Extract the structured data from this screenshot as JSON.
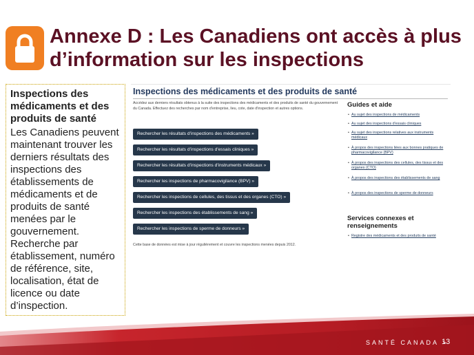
{
  "slide": {
    "title": "Annexe D : Les Canadiens ont accès à plus d’information sur les inspections",
    "accent_color": "#f07f22",
    "title_color": "#5b1124",
    "icon": "lock-icon"
  },
  "left_panel": {
    "heading": "Inspections des médicaments et des produits de santé",
    "body": "Les Canadiens peuvent maintenant trouver les derniers résultats des inspections des établissements de médicaments et de produits de santé menées par le gouvernement. Recherche par établissement, numéro de référence, site, localisation, état de licence ou date d’inspection."
  },
  "web_screenshot": {
    "title": "Inspections des médicaments et des produits de santé",
    "intro": "Accédez aux derniers résultats obtenus à la suite des inspections des médicaments et des produits de santé du gouvernement du Canada. Effectuez des recherches par nom d'entreprise, lieu, cote, date d'inspection et autres options.",
    "buttons": [
      "Rechercher les résultats d'inspections des médicaments »",
      "Rechercher les résultats d'inspections d'essais cliniques »",
      "Rechercher les résultats d'inspections d'instruments médicaux »",
      "Rechercher les inspections de pharmacovigilance (BPV) »",
      "Rechercher les inspections de cellules, des tissus et des organes (CTO) »",
      "Rechercher les inspections des établissements de sang »",
      "Rechercher les inspections de sperme de donneurs »"
    ],
    "footnote": "Cette base de données est mise à jour régulièrement et couvre les inspections menées depuis 2012.",
    "guides_heading": "Guides et aide",
    "guides_links": [
      "Au sujet des inspections de médicaments",
      "Au sujet des inspections d'essais cliniques",
      "Au sujet des inspections relatives aux instruments médicaux",
      "À propos des inspections liées aux bonnes pratiques de pharmacovigilance (BPV)",
      "À propos des inspections des cellules, des tissus et des organes (CTO)",
      "À propos des inspections des établissements de sang",
      "À propos des inspections de sperme de donneurs"
    ],
    "related_heading": "Services connexes et renseignements",
    "related_links": [
      "Registre des médicaments et des produits de santé"
    ],
    "button_color": "#26374a"
  },
  "footer": {
    "brand": "SANTÉ CANADA >",
    "page_number": "13"
  }
}
